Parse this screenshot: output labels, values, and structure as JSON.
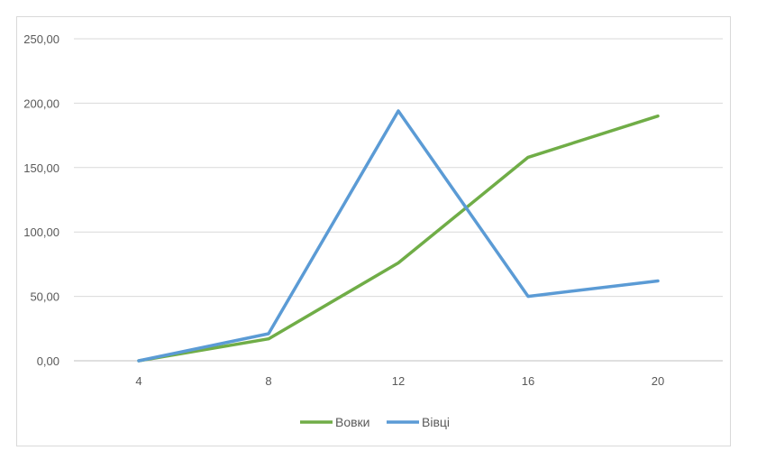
{
  "chart_data": {
    "type": "line",
    "title": "",
    "xlabel": "",
    "ylabel": "",
    "categories": [
      "4",
      "8",
      "12",
      "16",
      "20"
    ],
    "ylim": [
      0,
      250
    ],
    "yticks": [
      "0,00",
      "50,00",
      "100,00",
      "150,00",
      "200,00",
      "250,00"
    ],
    "grid": true,
    "legend_position": "bottom",
    "series": [
      {
        "name": "Вовки",
        "color": "#70ad47",
        "values": [
          0,
          17,
          76,
          158,
          190
        ]
      },
      {
        "name": "Вівці",
        "color": "#5b9bd5",
        "values": [
          0,
          21,
          194,
          50,
          62
        ]
      }
    ]
  }
}
